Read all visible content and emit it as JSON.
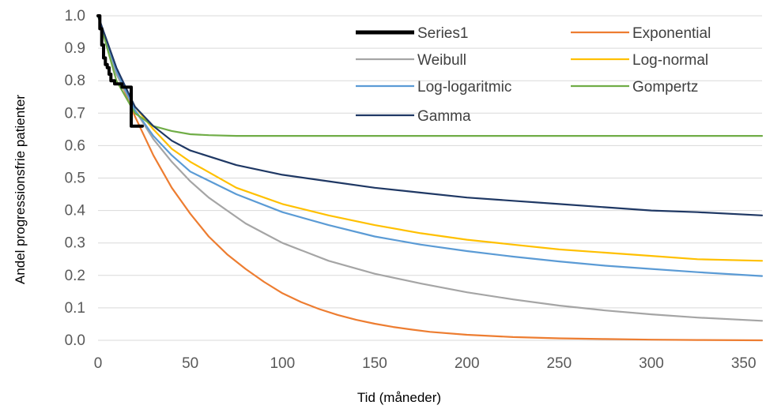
{
  "chart_data": {
    "type": "line",
    "title": "",
    "xlabel": "Tid (måneder)",
    "ylabel": "Andel progressionsfrie patienter",
    "xlim": [
      0,
      360
    ],
    "ylim": [
      0,
      1
    ],
    "x_ticks": [
      "0",
      "50",
      "100",
      "150",
      "200",
      "250",
      "300",
      "350"
    ],
    "x_tick_values": [
      0,
      50,
      100,
      150,
      200,
      250,
      300,
      350
    ],
    "y_ticks": [
      "0.0",
      "0.1",
      "0.2",
      "0.3",
      "0.4",
      "0.5",
      "0.6",
      "0.7",
      "0.8",
      "0.9",
      "1.0"
    ],
    "y_tick_values": [
      0,
      0.1,
      0.2,
      0.3,
      0.4,
      0.5,
      0.6,
      0.7,
      0.8,
      0.9,
      1.0
    ],
    "grid": true,
    "legend_position": "top-right",
    "series": [
      {
        "name": "Series1",
        "color": "#000000",
        "style": "step",
        "x": [
          0,
          0.5,
          1,
          2,
          3,
          4,
          5,
          6,
          7,
          9,
          13,
          17,
          18,
          18,
          24
        ],
        "y": [
          1.0,
          1.0,
          0.96,
          0.91,
          0.87,
          0.85,
          0.84,
          0.82,
          0.8,
          0.79,
          0.78,
          0.78,
          0.72,
          0.66,
          0.66
        ]
      },
      {
        "name": "Exponential",
        "color": "#ed7d31",
        "x": [
          0,
          10,
          20,
          30,
          40,
          50,
          60,
          70,
          80,
          90,
          100,
          110,
          120,
          130,
          140,
          150,
          160,
          170,
          180,
          200,
          225,
          250,
          275,
          300,
          325,
          360
        ],
        "y": [
          1.0,
          0.83,
          0.69,
          0.57,
          0.47,
          0.39,
          0.32,
          0.265,
          0.22,
          0.18,
          0.145,
          0.118,
          0.096,
          0.078,
          0.063,
          0.051,
          0.041,
          0.033,
          0.026,
          0.017,
          0.01,
          0.006,
          0.004,
          0.002,
          0.001,
          0.0
        ]
      },
      {
        "name": "Weibull",
        "color": "#a5a5a5",
        "x": [
          0,
          10,
          20,
          30,
          40,
          50,
          60,
          70,
          80,
          90,
          100,
          125,
          150,
          175,
          200,
          225,
          250,
          275,
          300,
          325,
          360
        ],
        "y": [
          1.0,
          0.82,
          0.71,
          0.62,
          0.55,
          0.49,
          0.44,
          0.4,
          0.36,
          0.33,
          0.3,
          0.245,
          0.205,
          0.175,
          0.148,
          0.126,
          0.107,
          0.092,
          0.08,
          0.07,
          0.06
        ]
      },
      {
        "name": "Log-normal",
        "color": "#ffc000",
        "x": [
          0,
          10,
          20,
          30,
          40,
          50,
          75,
          100,
          125,
          150,
          175,
          200,
          225,
          250,
          275,
          300,
          325,
          360
        ],
        "y": [
          1.0,
          0.83,
          0.72,
          0.65,
          0.59,
          0.55,
          0.47,
          0.42,
          0.385,
          0.355,
          0.33,
          0.31,
          0.295,
          0.28,
          0.27,
          0.26,
          0.25,
          0.245
        ]
      },
      {
        "name": "Log-logaritmic",
        "color": "#5b9bd5",
        "x": [
          0,
          10,
          20,
          30,
          40,
          50,
          75,
          100,
          125,
          150,
          175,
          200,
          225,
          250,
          275,
          300,
          325,
          360
        ],
        "y": [
          1.0,
          0.83,
          0.71,
          0.63,
          0.57,
          0.52,
          0.45,
          0.395,
          0.355,
          0.32,
          0.295,
          0.275,
          0.258,
          0.243,
          0.23,
          0.22,
          0.21,
          0.198
        ]
      },
      {
        "name": "Gompertz",
        "color": "#70ad47",
        "x": [
          0,
          10,
          20,
          30,
          40,
          50,
          60,
          75,
          100,
          150,
          200,
          250,
          300,
          360
        ],
        "y": [
          1.0,
          0.8,
          0.7,
          0.66,
          0.645,
          0.635,
          0.632,
          0.63,
          0.63,
          0.63,
          0.63,
          0.63,
          0.63,
          0.63
        ]
      },
      {
        "name": "Gamma",
        "color": "#1f3864",
        "x": [
          0,
          10,
          20,
          30,
          40,
          50,
          75,
          100,
          125,
          150,
          175,
          200,
          225,
          250,
          275,
          300,
          325,
          360
        ],
        "y": [
          1.0,
          0.84,
          0.72,
          0.66,
          0.615,
          0.585,
          0.54,
          0.51,
          0.49,
          0.47,
          0.455,
          0.44,
          0.43,
          0.42,
          0.41,
          0.4,
          0.395,
          0.385
        ]
      }
    ],
    "legend": [
      {
        "label": "Series1",
        "series": 0
      },
      {
        "label": "Exponential",
        "series": 1
      },
      {
        "label": "Weibull",
        "series": 2
      },
      {
        "label": "Log-normal",
        "series": 3
      },
      {
        "label": "Log-logaritmic",
        "series": 4
      },
      {
        "label": "Gompertz",
        "series": 5
      },
      {
        "label": "Gamma",
        "series": 6
      }
    ]
  }
}
